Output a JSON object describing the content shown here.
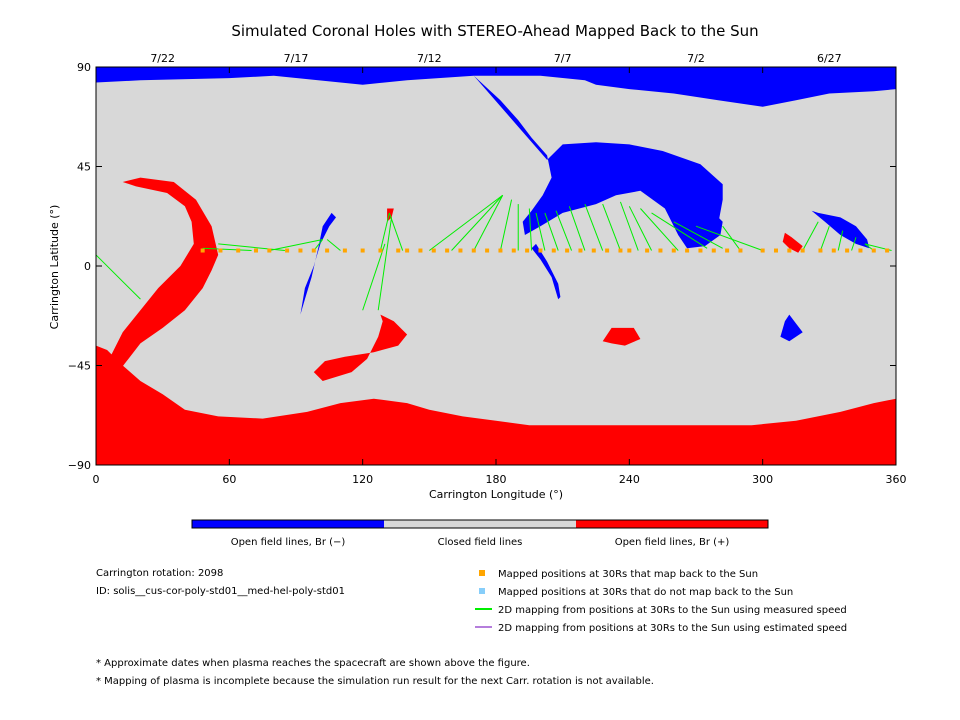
{
  "chart_data": {
    "type": "heatmap",
    "title": "Simulated Coronal Holes with STEREO-Ahead Mapped Back to the Sun",
    "xlabel": "Carrington Longitude (°)",
    "ylabel": "Carrington Latitude (°)",
    "xlim": [
      0,
      360
    ],
    "ylim": [
      -90,
      90
    ],
    "x_ticks": [
      0,
      60,
      120,
      180,
      240,
      300,
      360
    ],
    "y_ticks": [
      -90,
      -45,
      0,
      45,
      90
    ],
    "top_date_labels": [
      {
        "lon": 30,
        "label": "7/22"
      },
      {
        "lon": 90,
        "label": "7/17"
      },
      {
        "lon": 150,
        "label": "7/12"
      },
      {
        "lon": 210,
        "label": "7/7"
      },
      {
        "lon": 270,
        "label": "7/2"
      },
      {
        "lon": 330,
        "label": "6/27"
      }
    ],
    "colors": {
      "open_negative": "#0000ff",
      "closed": "#d8d8d8",
      "open_positive": "#ff0000",
      "mapped": "#ffa500",
      "unmapped": "#87cefa",
      "measured_speed": "#00ee00",
      "estimated_speed": "#b57edc"
    },
    "colorbar_labels": [
      "Open field lines, Br (−)",
      "Closed field lines",
      "Open field lines, Br (+)"
    ],
    "background_region": "closed",
    "regions": [
      {
        "polarity": "open_negative",
        "points": [
          [
            0,
            90
          ],
          [
            360,
            90
          ],
          [
            360,
            80
          ],
          [
            350,
            79
          ],
          [
            330,
            78
          ],
          [
            315,
            75
          ],
          [
            300,
            72
          ],
          [
            280,
            75
          ],
          [
            260,
            78
          ],
          [
            240,
            80
          ],
          [
            225,
            82
          ],
          [
            220,
            84
          ],
          [
            200,
            86
          ],
          [
            170,
            86
          ],
          [
            140,
            84
          ],
          [
            120,
            82
          ],
          [
            100,
            84
          ],
          [
            80,
            86
          ],
          [
            60,
            85
          ],
          [
            20,
            84
          ],
          [
            0,
            83
          ]
        ]
      },
      {
        "polarity": "open_negative",
        "points": [
          [
            170,
            86
          ],
          [
            182,
            75
          ],
          [
            190,
            66
          ],
          [
            196,
            58
          ],
          [
            203,
            50
          ],
          [
            205,
            40
          ],
          [
            201,
            32
          ],
          [
            196,
            25
          ],
          [
            192,
            20
          ],
          [
            193,
            14
          ],
          [
            200,
            18
          ],
          [
            210,
            24
          ],
          [
            225,
            28
          ],
          [
            234,
            32
          ],
          [
            245,
            34
          ],
          [
            256,
            26
          ],
          [
            262,
            14
          ],
          [
            270,
            11
          ],
          [
            276,
            14
          ],
          [
            280,
            19
          ],
          [
            282,
            30
          ],
          [
            282,
            37
          ],
          [
            272,
            46
          ],
          [
            255,
            52
          ],
          [
            240,
            55
          ],
          [
            225,
            56
          ],
          [
            210,
            55
          ],
          [
            203,
            48
          ]
        ]
      },
      {
        "polarity": "open_negative",
        "points": [
          [
            262,
            14
          ],
          [
            266,
            8
          ],
          [
            274,
            9
          ],
          [
            281,
            14
          ],
          [
            282,
            20
          ],
          [
            278,
            24
          ],
          [
            270,
            21
          ]
        ]
      },
      {
        "polarity": "open_negative",
        "points": [
          [
            92,
            -22
          ],
          [
            94,
            -10
          ],
          [
            98,
            0
          ],
          [
            101,
            10
          ],
          [
            105,
            18
          ],
          [
            108,
            22
          ],
          [
            106,
            24
          ],
          [
            102,
            18
          ],
          [
            100,
            8
          ],
          [
            97,
            -5
          ],
          [
            94,
            -15
          ]
        ]
      },
      {
        "polarity": "open_negative",
        "points": [
          [
            208,
            -15
          ],
          [
            205,
            -5
          ],
          [
            200,
            3
          ],
          [
            196,
            8
          ],
          [
            198,
            10
          ],
          [
            203,
            2
          ],
          [
            208,
            -8
          ],
          [
            209,
            -14
          ]
        ]
      },
      {
        "polarity": "open_negative",
        "points": [
          [
            325,
            24
          ],
          [
            335,
            22
          ],
          [
            342,
            18
          ],
          [
            347,
            12
          ],
          [
            348,
            8
          ],
          [
            342,
            10
          ],
          [
            335,
            14
          ],
          [
            328,
            20
          ],
          [
            322,
            25
          ]
        ]
      },
      {
        "polarity": "open_negative",
        "points": [
          [
            308,
            -32
          ],
          [
            310,
            -25
          ],
          [
            312,
            -22
          ],
          [
            315,
            -26
          ],
          [
            318,
            -30
          ],
          [
            312,
            -34
          ]
        ]
      },
      {
        "polarity": "open_positive",
        "points": [
          [
            0,
            -90
          ],
          [
            360,
            -90
          ],
          [
            360,
            -60
          ],
          [
            350,
            -62
          ],
          [
            335,
            -66
          ],
          [
            315,
            -70
          ],
          [
            295,
            -72
          ],
          [
            275,
            -72
          ],
          [
            250,
            -72
          ],
          [
            225,
            -72
          ],
          [
            195,
            -72
          ],
          [
            180,
            -70
          ],
          [
            165,
            -68
          ],
          [
            150,
            -65
          ],
          [
            140,
            -62
          ],
          [
            125,
            -60
          ],
          [
            110,
            -62
          ],
          [
            95,
            -66
          ],
          [
            75,
            -69
          ],
          [
            55,
            -68
          ],
          [
            40,
            -65
          ],
          [
            30,
            -58
          ],
          [
            20,
            -52
          ],
          [
            12,
            -45
          ],
          [
            5,
            -38
          ],
          [
            0,
            -36
          ]
        ]
      },
      {
        "polarity": "open_positive",
        "points": [
          [
            5,
            -60
          ],
          [
            10,
            -48
          ],
          [
            20,
            -35
          ],
          [
            30,
            -28
          ],
          [
            40,
            -20
          ],
          [
            48,
            -10
          ],
          [
            52,
            -2
          ],
          [
            55,
            5
          ],
          [
            52,
            18
          ],
          [
            45,
            30
          ],
          [
            35,
            38
          ],
          [
            20,
            40
          ],
          [
            12,
            38
          ],
          [
            18,
            36
          ],
          [
            32,
            33
          ],
          [
            40,
            27
          ],
          [
            43,
            20
          ],
          [
            44,
            10
          ],
          [
            38,
            0
          ],
          [
            28,
            -10
          ],
          [
            20,
            -20
          ],
          [
            12,
            -30
          ],
          [
            6,
            -42
          ]
        ]
      },
      {
        "polarity": "open_positive",
        "points": [
          [
            128,
            -22
          ],
          [
            134,
            -25
          ],
          [
            140,
            -31
          ],
          [
            136,
            -36
          ],
          [
            125,
            -39
          ],
          [
            112,
            -41
          ],
          [
            103,
            -43
          ],
          [
            98,
            -48
          ],
          [
            102,
            -52
          ],
          [
            115,
            -48
          ],
          [
            122,
            -42
          ],
          [
            127,
            -32
          ],
          [
            129,
            -25
          ]
        ]
      },
      {
        "polarity": "open_positive",
        "points": [
          [
            232,
            -28
          ],
          [
            242,
            -28
          ],
          [
            245,
            -33
          ],
          [
            238,
            -36
          ],
          [
            232,
            -35
          ],
          [
            228,
            -34
          ]
        ]
      },
      {
        "polarity": "open_positive",
        "points": [
          [
            310,
            15
          ],
          [
            313,
            13
          ],
          [
            318,
            9
          ],
          [
            316,
            6
          ],
          [
            312,
            8
          ],
          [
            309,
            11
          ]
        ]
      },
      {
        "polarity": "open_positive",
        "points": [
          [
            131,
            26
          ],
          [
            134,
            26
          ],
          [
            133,
            22
          ],
          [
            131,
            20
          ]
        ]
      }
    ],
    "mapped_points_lat": 7,
    "mapped_points_lon": [
      48,
      56,
      64,
      72,
      78,
      86,
      92,
      98,
      104,
      112,
      120,
      128,
      136,
      140,
      146,
      152,
      158,
      164,
      170,
      176,
      182,
      188,
      194,
      200,
      206,
      212,
      218,
      224,
      230,
      236,
      240,
      248,
      254,
      260,
      266,
      272,
      278,
      284,
      290,
      300,
      306,
      312,
      318,
      326,
      332,
      338,
      344,
      350,
      356
    ],
    "mapping_lines": [
      [
        [
          0,
          5
        ],
        [
          20,
          -15
        ]
      ],
      [
        [
          48,
          8
        ],
        [
          70,
          7
        ]
      ],
      [
        [
          55,
          10
        ],
        [
          85,
          7
        ]
      ],
      [
        [
          102,
          12
        ],
        [
          98,
          7
        ]
      ],
      [
        [
          102,
          12
        ],
        [
          78,
          7
        ]
      ],
      [
        [
          104,
          12
        ],
        [
          110,
          7
        ]
      ],
      [
        [
          132,
          24
        ],
        [
          128,
          7
        ]
      ],
      [
        [
          132,
          24
        ],
        [
          138,
          7
        ]
      ],
      [
        [
          133,
          22
        ],
        [
          127,
          -20
        ]
      ],
      [
        [
          130,
          10
        ],
        [
          120,
          -20
        ]
      ],
      [
        [
          183,
          32
        ],
        [
          150,
          7
        ]
      ],
      [
        [
          183,
          32
        ],
        [
          160,
          7
        ]
      ],
      [
        [
          183,
          32
        ],
        [
          170,
          7
        ]
      ],
      [
        [
          187,
          30
        ],
        [
          182,
          7
        ]
      ],
      [
        [
          190,
          28
        ],
        [
          190,
          7
        ]
      ],
      [
        [
          195,
          26
        ],
        [
          196,
          7
        ]
      ],
      [
        [
          198,
          24
        ],
        [
          202,
          7
        ]
      ],
      [
        [
          202,
          24
        ],
        [
          208,
          7
        ]
      ],
      [
        [
          207,
          25
        ],
        [
          214,
          7
        ]
      ],
      [
        [
          213,
          27
        ],
        [
          220,
          7
        ]
      ],
      [
        [
          220,
          28
        ],
        [
          228,
          7
        ]
      ],
      [
        [
          228,
          28
        ],
        [
          236,
          7
        ]
      ],
      [
        [
          236,
          29
        ],
        [
          244,
          7
        ]
      ],
      [
        [
          240,
          27
        ],
        [
          250,
          7
        ]
      ],
      [
        [
          245,
          26
        ],
        [
          262,
          7
        ]
      ],
      [
        [
          250,
          24
        ],
        [
          275,
          8
        ]
      ],
      [
        [
          260,
          20
        ],
        [
          282,
          8
        ]
      ],
      [
        [
          270,
          18
        ],
        [
          300,
          7
        ]
      ],
      [
        [
          282,
          18
        ],
        [
          290,
          7
        ]
      ],
      [
        [
          325,
          20
        ],
        [
          318,
          7
        ]
      ],
      [
        [
          330,
          18
        ],
        [
          326,
          7
        ]
      ],
      [
        [
          336,
          16
        ],
        [
          334,
          7
        ]
      ],
      [
        [
          342,
          13
        ],
        [
          340,
          7
        ]
      ],
      [
        [
          346,
          10
        ],
        [
          350,
          7
        ]
      ],
      [
        [
          346,
          10
        ],
        [
          358,
          7
        ]
      ]
    ],
    "legend_items": [
      {
        "label": "Mapped positions at 30Rs that map back to the Sun",
        "kind": "square",
        "color": "#ffa500"
      },
      {
        "label": "Mapped positions at 30Rs that do not map back to the Sun",
        "kind": "square",
        "color": "#87cefa"
      },
      {
        "label": "2D mapping from positions at 30Rs to the Sun using measured speed",
        "kind": "line",
        "color": "#00ee00"
      },
      {
        "label": "2D mapping from positions at 30Rs to the Sun using estimated speed",
        "kind": "line",
        "color": "#b57edc"
      }
    ],
    "info_lines": [
      "Carrington rotation: 2098",
      "ID: solis__cus-cor-poly-std01__med-hel-poly-std01"
    ],
    "footnotes": [
      "* Approximate dates when plasma reaches the spacecraft are shown above the figure.",
      "* Mapping of plasma is incomplete because the simulation run result for the next Carr. rotation is not available."
    ]
  }
}
